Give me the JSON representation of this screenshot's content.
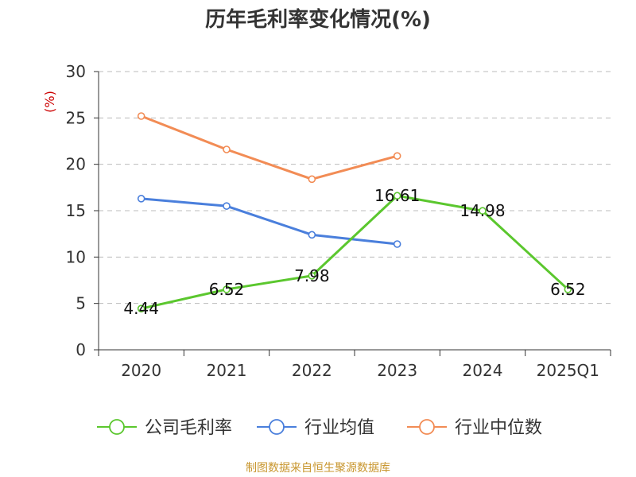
{
  "chart_data": {
    "type": "line",
    "title": "历年毛利率变化情况(%)",
    "ylabel": "(%)",
    "xlabel": "",
    "categories": [
      "2020",
      "2021",
      "2022",
      "2023",
      "2024",
      "2025Q1"
    ],
    "ylim": [
      0,
      30
    ],
    "yticks": [
      0,
      5,
      10,
      15,
      20,
      25,
      30
    ],
    "grid": true,
    "legend_position": "bottom",
    "series": [
      {
        "name": "公司毛利率",
        "color": "#5bc72e",
        "show_labels": true,
        "values": [
          4.44,
          6.52,
          7.98,
          16.61,
          14.98,
          6.52
        ],
        "labels": [
          "4.44",
          "6.52",
          "7.98",
          "16.61",
          "14.98",
          "6.52"
        ]
      },
      {
        "name": "行业均值",
        "color": "#4a7fdc",
        "show_labels": false,
        "values": [
          16.3,
          15.5,
          12.4,
          11.4,
          null,
          null
        ]
      },
      {
        "name": "行业中位数",
        "color": "#f28c55",
        "show_labels": false,
        "values": [
          25.2,
          21.6,
          18.4,
          20.9,
          null,
          null
        ]
      }
    ]
  },
  "footer": {
    "source": "制图数据来自恒生聚源数据库"
  }
}
